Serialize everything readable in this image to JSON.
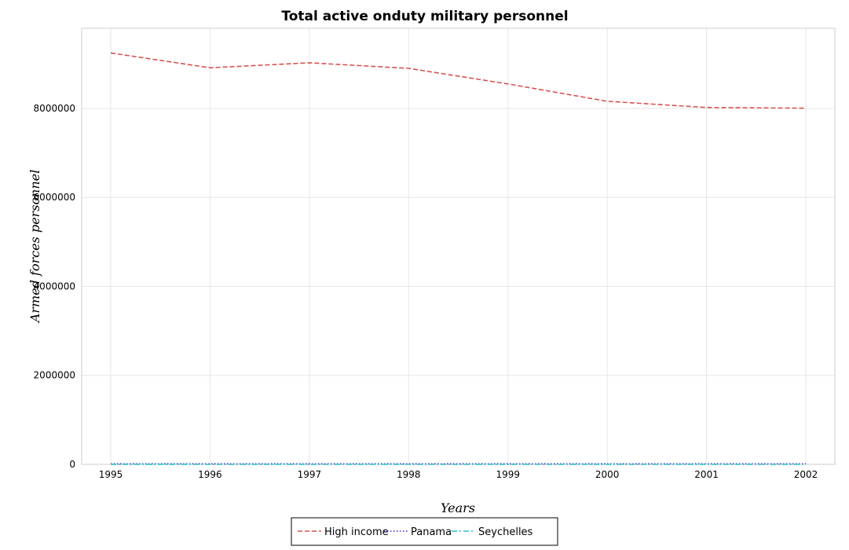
{
  "chart_data": {
    "type": "line",
    "title": "Total active onduty military personnel",
    "xlabel": "Years",
    "ylabel": "Armed forces personnel",
    "x": [
      "1995",
      "1996",
      "1997",
      "1998",
      "1999",
      "2000",
      "2001",
      "2002"
    ],
    "y_ticks": [
      "0",
      "2000000",
      "4000000",
      "6000000",
      "8000000"
    ],
    "ylim": [
      0,
      9800000
    ],
    "grid": true,
    "legend_position": "bottom-center",
    "series": [
      {
        "name": "High income",
        "color": "#d9534f",
        "dash": "dashed",
        "values": [
          9245000,
          8912000,
          9025000,
          8900000,
          8550000,
          8160000,
          8020000,
          8005000
        ]
      },
      {
        "name": "Panama",
        "color": "#3a2fcf",
        "dash": "dotted",
        "values": [
          11800,
          11800,
          11800,
          11800,
          11800,
          11800,
          11800,
          11800
        ]
      },
      {
        "name": "Seychelles",
        "color": "#2ac4c4",
        "dash": "dashdot",
        "values": [
          1300,
          800,
          800,
          450,
          450,
          450,
          450,
          450
        ]
      }
    ]
  }
}
